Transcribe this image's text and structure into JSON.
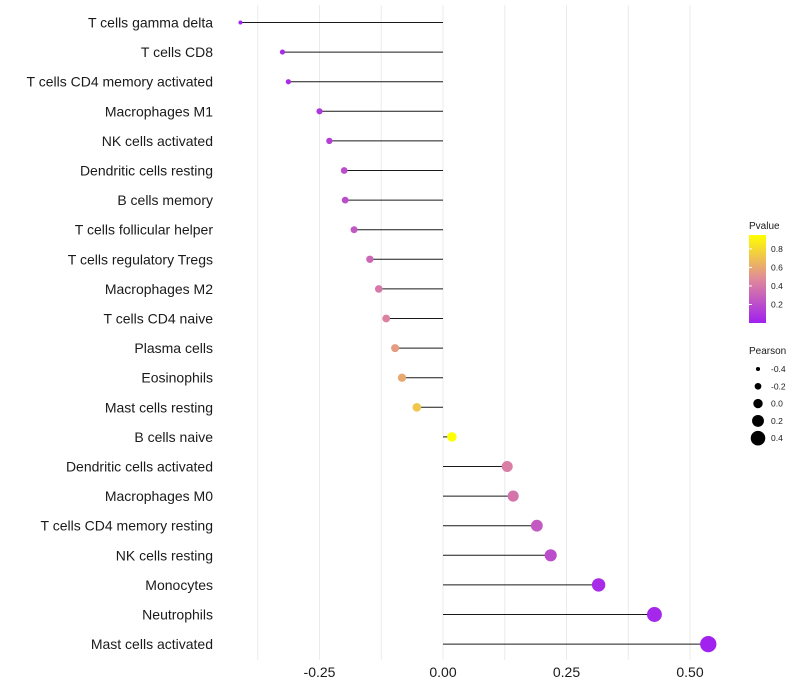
{
  "chart_data": {
    "type": "lollipop",
    "title": "",
    "xlabel": "",
    "ylabel": "",
    "xlim": [
      -0.4,
      0.55
    ],
    "grid": "vertical",
    "x_ticks": [
      -0.25,
      0.0,
      0.25,
      0.5
    ],
    "x_tick_labels": [
      "-0.25",
      "0.00",
      "0.25",
      "0.50"
    ],
    "categories": [
      "T cells gamma delta",
      "T cells CD8",
      "T cells CD4 memory activated",
      "Macrophages M1",
      "NK cells activated",
      "Dendritic cells resting",
      "B cells memory",
      "T cells follicular helper",
      "T cells regulatory  Tregs",
      "Macrophages M2",
      "T cells CD4 naive",
      "Plasma cells",
      "Eosinophils",
      "Mast cells resting",
      "B cells naive",
      "Dendritic cells activated",
      "Macrophages M0",
      "T cells CD4 memory resting",
      "NK cells resting",
      "Monocytes",
      "Neutrophils",
      "Mast cells activated"
    ],
    "pearson": [
      -0.41,
      -0.325,
      -0.313,
      -0.25,
      -0.23,
      -0.2,
      -0.198,
      -0.18,
      -0.148,
      -0.13,
      -0.115,
      -0.097,
      -0.083,
      -0.053,
      0.018,
      0.13,
      0.142,
      0.19,
      0.218,
      0.315,
      0.428,
      0.537
    ],
    "pvalue": [
      0.02,
      0.05,
      0.06,
      0.1,
      0.14,
      0.2,
      0.2,
      0.25,
      0.32,
      0.4,
      0.44,
      0.55,
      0.6,
      0.72,
      0.95,
      0.42,
      0.38,
      0.26,
      0.2,
      0.05,
      0.03,
      0.01
    ],
    "legends": {
      "color": {
        "title": "Pvalue",
        "ticks": [
          0.8,
          0.6,
          0.4,
          0.2
        ],
        "tick_labels": [
          "0.8",
          "0.6",
          "0.4",
          "0.2"
        ],
        "range": [
          0.0,
          0.95
        ],
        "color_low": "#a020f0",
        "color_mid": "#e08a9a",
        "color_high": "#ffff00"
      },
      "size": {
        "title": "Pearson",
        "values": [
          -0.4,
          -0.2,
          0.0,
          0.2,
          0.4
        ],
        "labels": [
          "-0.4",
          "-0.2",
          "0.0",
          "0.2",
          "0.4"
        ]
      }
    }
  }
}
